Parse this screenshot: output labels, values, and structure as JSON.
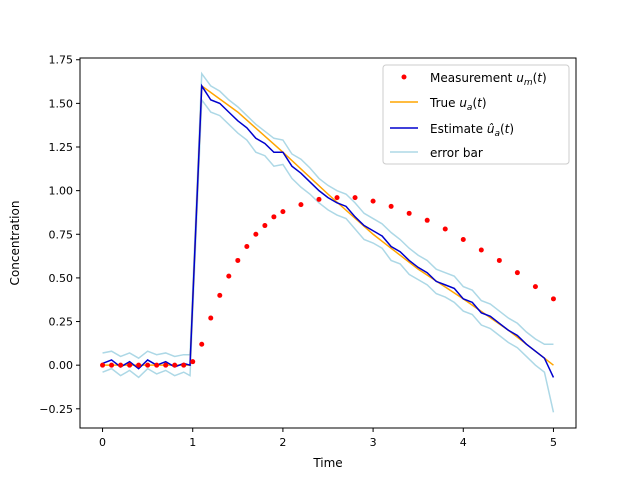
{
  "chart_data": {
    "type": "line",
    "title": "",
    "xlabel": "Time",
    "ylabel": "Concentration",
    "xlim": [
      -0.25,
      5.25
    ],
    "ylim": [
      -0.36,
      1.76
    ],
    "x_ticks": [
      0,
      1,
      2,
      3,
      4,
      5
    ],
    "x_tick_labels": [
      "0",
      "1",
      "2",
      "3",
      "4",
      "5"
    ],
    "y_ticks": [
      -0.25,
      0.0,
      0.25,
      0.5,
      0.75,
      1.0,
      1.25,
      1.5,
      1.75
    ],
    "y_tick_labels": [
      "−0.25",
      "0.00",
      "0.25",
      "0.50",
      "0.75",
      "1.00",
      "1.25",
      "1.50",
      "1.75"
    ],
    "grid": false,
    "legend_position": "top-right",
    "colors": {
      "measurement": "#ff0000",
      "true": "#ffa500",
      "estimate": "#0000cd",
      "error_bar": "#add8e6"
    },
    "series": [
      {
        "name": "Measurement u_m(t)",
        "style": "dots",
        "x": [
          0,
          0.1,
          0.2,
          0.3,
          0.4,
          0.5,
          0.6,
          0.7,
          0.8,
          0.9,
          1.0,
          1.1,
          1.2,
          1.3,
          1.4,
          1.5,
          1.6,
          1.7,
          1.8,
          1.9,
          2.0,
          2.2,
          2.4,
          2.6,
          2.8,
          3.0,
          3.2,
          3.4,
          3.6,
          3.8,
          4.0,
          4.2,
          4.4,
          4.6,
          4.8,
          5.0
        ],
        "y": [
          0,
          0,
          0,
          0,
          0,
          0,
          0,
          0,
          0,
          0,
          0.02,
          0.12,
          0.27,
          0.4,
          0.51,
          0.6,
          0.68,
          0.75,
          0.8,
          0.85,
          0.88,
          0.92,
          0.95,
          0.96,
          0.96,
          0.94,
          0.91,
          0.87,
          0.83,
          0.78,
          0.72,
          0.66,
          0.6,
          0.53,
          0.45,
          0.38
        ]
      },
      {
        "name": "True u_a(t)",
        "style": "line",
        "x": [
          0,
          0.97,
          1.1,
          1.5,
          2.0,
          2.5,
          3.0,
          3.5,
          4.0,
          4.5,
          5.0
        ],
        "y": [
          0,
          0,
          1.6,
          1.45,
          1.22,
          0.98,
          0.75,
          0.55,
          0.38,
          0.2,
          0.0
        ]
      },
      {
        "name": "Estimate û_a(t)",
        "style": "line",
        "x": [
          0,
          0.1,
          0.2,
          0.3,
          0.4,
          0.5,
          0.6,
          0.7,
          0.8,
          0.9,
          0.97,
          1.1,
          1.2,
          1.3,
          1.4,
          1.5,
          1.6,
          1.7,
          1.8,
          1.9,
          2.0,
          2.1,
          2.2,
          2.3,
          2.4,
          2.5,
          2.6,
          2.7,
          2.8,
          2.9,
          3.0,
          3.1,
          3.2,
          3.3,
          3.4,
          3.5,
          3.6,
          3.7,
          3.8,
          3.9,
          4.0,
          4.1,
          4.2,
          4.3,
          4.4,
          4.5,
          4.6,
          4.7,
          4.8,
          4.9,
          5.0
        ],
        "y": [
          0.01,
          0.03,
          -0.01,
          0.02,
          -0.02,
          0.03,
          0.0,
          0.02,
          -0.01,
          0.01,
          0.0,
          1.6,
          1.52,
          1.5,
          1.45,
          1.4,
          1.36,
          1.3,
          1.27,
          1.22,
          1.22,
          1.14,
          1.1,
          1.05,
          1.0,
          0.96,
          0.93,
          0.91,
          0.85,
          0.8,
          0.77,
          0.74,
          0.68,
          0.65,
          0.6,
          0.56,
          0.53,
          0.48,
          0.46,
          0.44,
          0.38,
          0.36,
          0.3,
          0.28,
          0.24,
          0.2,
          0.17,
          0.12,
          0.08,
          0.04,
          -0.07
        ]
      },
      {
        "name": "error bar",
        "style": "band",
        "x": [
          0,
          0.1,
          0.2,
          0.3,
          0.4,
          0.5,
          0.6,
          0.7,
          0.8,
          0.9,
          0.97,
          1.1,
          1.2,
          1.3,
          1.4,
          1.5,
          1.6,
          1.7,
          1.8,
          1.9,
          2.0,
          2.1,
          2.2,
          2.3,
          2.4,
          2.5,
          2.6,
          2.7,
          2.8,
          2.9,
          3.0,
          3.1,
          3.2,
          3.3,
          3.4,
          3.5,
          3.6,
          3.7,
          3.8,
          3.9,
          4.0,
          4.1,
          4.2,
          4.3,
          4.4,
          4.5,
          4.6,
          4.7,
          4.8,
          4.9,
          5.0
        ],
        "upper": [
          0.07,
          0.08,
          0.05,
          0.07,
          0.04,
          0.08,
          0.06,
          0.07,
          0.05,
          0.06,
          0.06,
          1.67,
          1.6,
          1.57,
          1.52,
          1.48,
          1.43,
          1.38,
          1.34,
          1.3,
          1.29,
          1.21,
          1.18,
          1.13,
          1.07,
          1.03,
          1.0,
          0.98,
          0.93,
          0.87,
          0.84,
          0.81,
          0.76,
          0.72,
          0.67,
          0.63,
          0.6,
          0.55,
          0.53,
          0.51,
          0.45,
          0.43,
          0.37,
          0.35,
          0.31,
          0.27,
          0.24,
          0.19,
          0.15,
          0.12,
          0.12
        ],
        "lower": [
          -0.04,
          -0.02,
          -0.06,
          -0.03,
          -0.07,
          -0.02,
          -0.05,
          -0.03,
          -0.06,
          -0.04,
          -0.06,
          1.52,
          1.45,
          1.43,
          1.38,
          1.33,
          1.29,
          1.22,
          1.2,
          1.14,
          1.15,
          1.07,
          1.02,
          0.98,
          0.93,
          0.89,
          0.86,
          0.84,
          0.78,
          0.72,
          0.7,
          0.67,
          0.6,
          0.58,
          0.52,
          0.49,
          0.46,
          0.41,
          0.39,
          0.36,
          0.31,
          0.29,
          0.23,
          0.21,
          0.17,
          0.13,
          0.1,
          0.05,
          0.0,
          -0.04,
          -0.27
        ]
      }
    ]
  }
}
